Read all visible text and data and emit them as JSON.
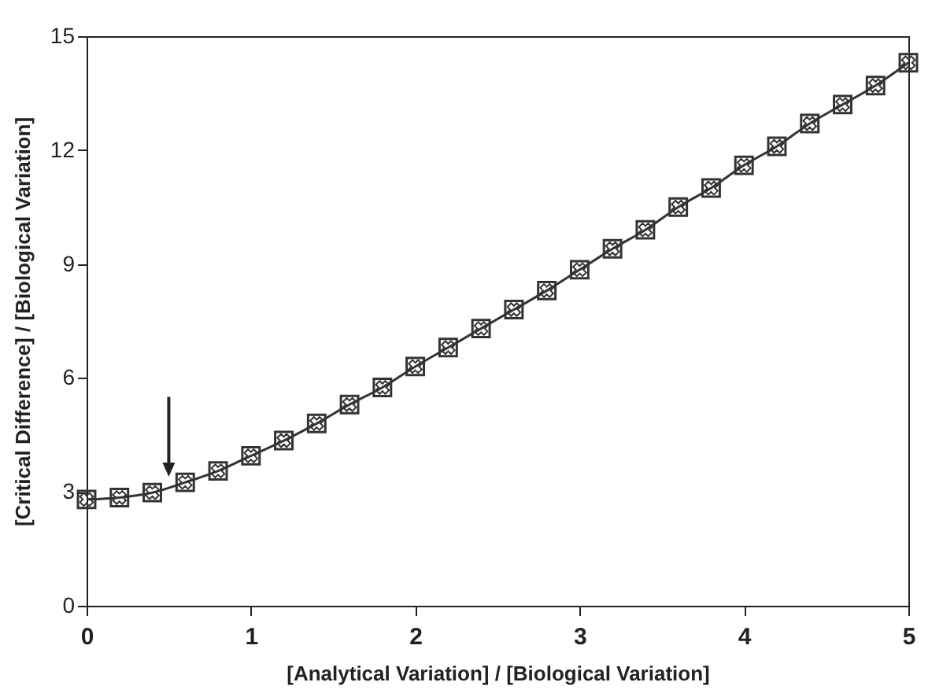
{
  "chart_data": {
    "type": "line",
    "xlabel": "[Analytical Variation] / [Biological Variation]",
    "ylabel": "[Critical Difference] / [Biological Variation]",
    "x": [
      0,
      0.2,
      0.4,
      0.6,
      0.8,
      1,
      1.2,
      1.4,
      1.6,
      1.8,
      2,
      2.2,
      2.4,
      2.6,
      2.8,
      3,
      3.2,
      3.4,
      3.6,
      3.8,
      4,
      4.2,
      4.4,
      4.6,
      4.8,
      5
    ],
    "series": [
      {
        "color": "#333333",
        "values": [
          2.8,
          2.85,
          2.98,
          3.25,
          3.55,
          3.95,
          4.35,
          4.8,
          5.3,
          5.75,
          6.3,
          6.8,
          7.3,
          7.8,
          8.3,
          8.85,
          9.4,
          9.9,
          10.5,
          11.0,
          11.6,
          12.1,
          12.7,
          13.2,
          13.7,
          14.3
        ]
      }
    ],
    "xlim": [
      0,
      5
    ],
    "ylim": [
      0,
      15
    ],
    "xticks": [
      0,
      1,
      2,
      3,
      4,
      5
    ],
    "yticks": [
      0,
      3,
      6,
      9,
      12,
      15
    ],
    "grid": false,
    "legend": false,
    "marker": "square",
    "line_style": "solid"
  }
}
